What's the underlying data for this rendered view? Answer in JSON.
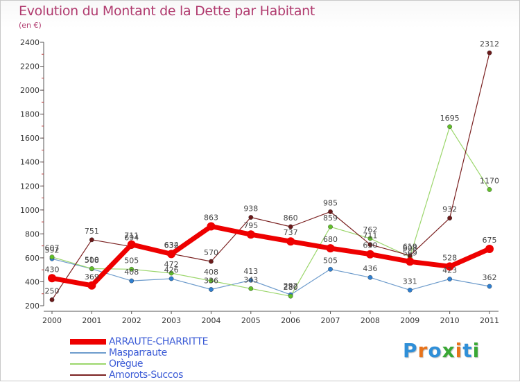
{
  "title": "Evolution du Montant de la Dette par Habitant",
  "subtitle": "(en €)",
  "logo": {
    "text": "Proxiti",
    "letters": [
      "P",
      "r",
      "o",
      "x",
      "i",
      "t",
      "i"
    ],
    "colors": [
      "#2f8fd8",
      "#e8731a",
      "#2f8fd8",
      "#3aa835",
      "#e8731a",
      "#2f8fd8",
      "#3aa835"
    ]
  },
  "chart_data": {
    "type": "line",
    "title": "Evolution du Montant de la Dette par Habitant",
    "ylabel": "(en €)",
    "xlabel": "",
    "x": [
      "2000",
      "2001",
      "2002",
      "2003",
      "2004",
      "2005",
      "2006",
      "2007",
      "2008",
      "2009",
      "2010",
      "2011"
    ],
    "ylim": [
      200,
      2400
    ],
    "yticks": [
      200,
      400,
      600,
      800,
      1000,
      1200,
      1400,
      1600,
      1800,
      2000,
      2200,
      2400
    ],
    "grid": false,
    "legend_placement": "bottom-left",
    "series": [
      {
        "name": "ARRAUTE-CHARRITTE",
        "color": "#ee0000",
        "marker": "#ee0000",
        "width": 7,
        "r": 6,
        "values": [
          430,
          369,
          711,
          632,
          863,
          795,
          737,
          680,
          630,
          569,
          528,
          675
        ],
        "labels": [
          "430",
          "369",
          "711",
          "632",
          "863",
          "795",
          "737",
          "680",
          "630",
          "569",
          "528",
          "675"
        ]
      },
      {
        "name": "Masparraute",
        "color": "#6e9ccc",
        "marker": "#2f7fd0",
        "width": 1.2,
        "r": 3.2,
        "values": [
          592,
          508,
          408,
          426,
          336,
          413,
          292,
          505,
          436,
          331,
          423,
          362
        ],
        "labels": [
          "592",
          "508",
          "408",
          "426",
          "336",
          "413",
          "292",
          "505",
          "436",
          "331",
          "423",
          "362"
        ]
      },
      {
        "name": "Orègue",
        "color": "#9bd66b",
        "marker": "#62c02a",
        "width": 1.2,
        "r": 3.2,
        "values": [
          607,
          510,
          505,
          472,
          408,
          343,
          280,
          859,
          762,
          608,
          1695,
          1170
        ],
        "labels": [
          "607",
          "510",
          "505",
          "472",
          "408",
          "343",
          "280",
          "859",
          "762",
          "608",
          "1695",
          "1170"
        ]
      },
      {
        "name": "Amorots-Succos",
        "color": "#7a2020",
        "marker": "#6b1a1a",
        "width": 1.2,
        "r": 3.2,
        "values": [
          250,
          751,
          694,
          634,
          570,
          938,
          860,
          985,
          711,
          619,
          932,
          2312
        ],
        "labels": [
          "250",
          "751",
          "694",
          "634",
          "570",
          "938",
          "860",
          "985",
          "711",
          "619",
          "932",
          "2312"
        ]
      }
    ]
  }
}
